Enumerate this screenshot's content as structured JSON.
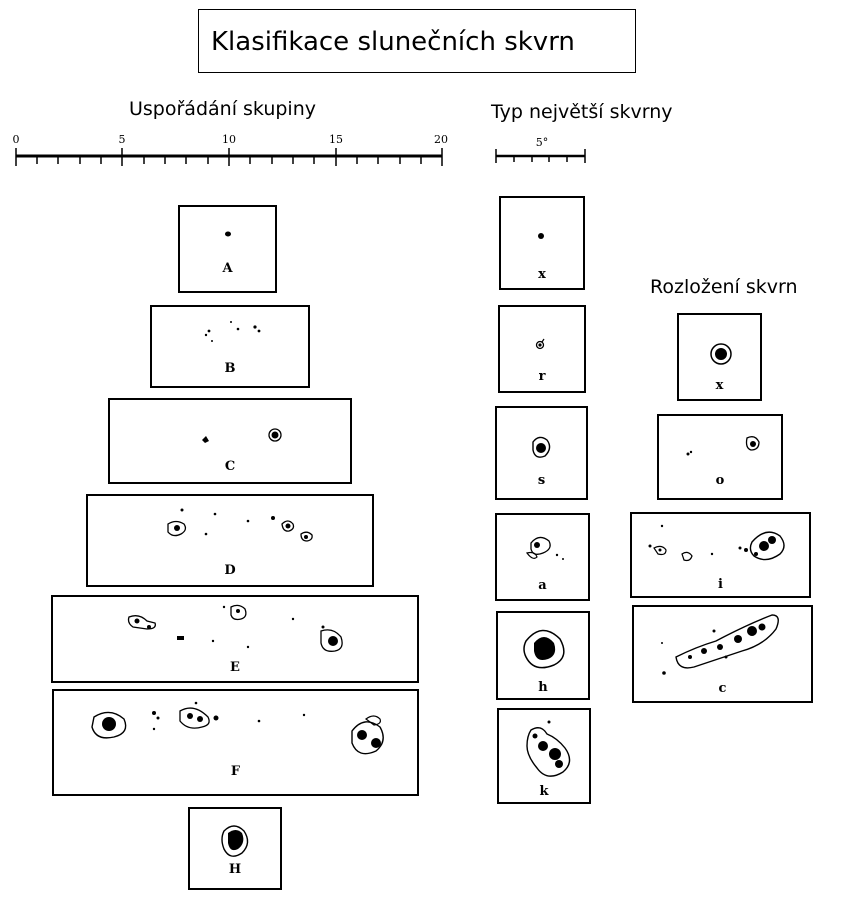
{
  "title": "Klasifikace slunečních skvrn",
  "headings": {
    "group_arrangement": "Uspořádání skupiny",
    "largest_spot_type": "Typ největší skvrny",
    "spot_distribution": "Rozložení skvrn"
  },
  "scale_group": {
    "ticks": [
      "0",
      "5",
      "10",
      "15",
      "20"
    ]
  },
  "scale_spot": {
    "label": "5°"
  },
  "group_classes": [
    "A",
    "B",
    "C",
    "D",
    "E",
    "F",
    "H"
  ],
  "spot_types": [
    "x",
    "r",
    "s",
    "a",
    "h",
    "k"
  ],
  "distribution_types": [
    "x",
    "o",
    "i",
    "c"
  ]
}
